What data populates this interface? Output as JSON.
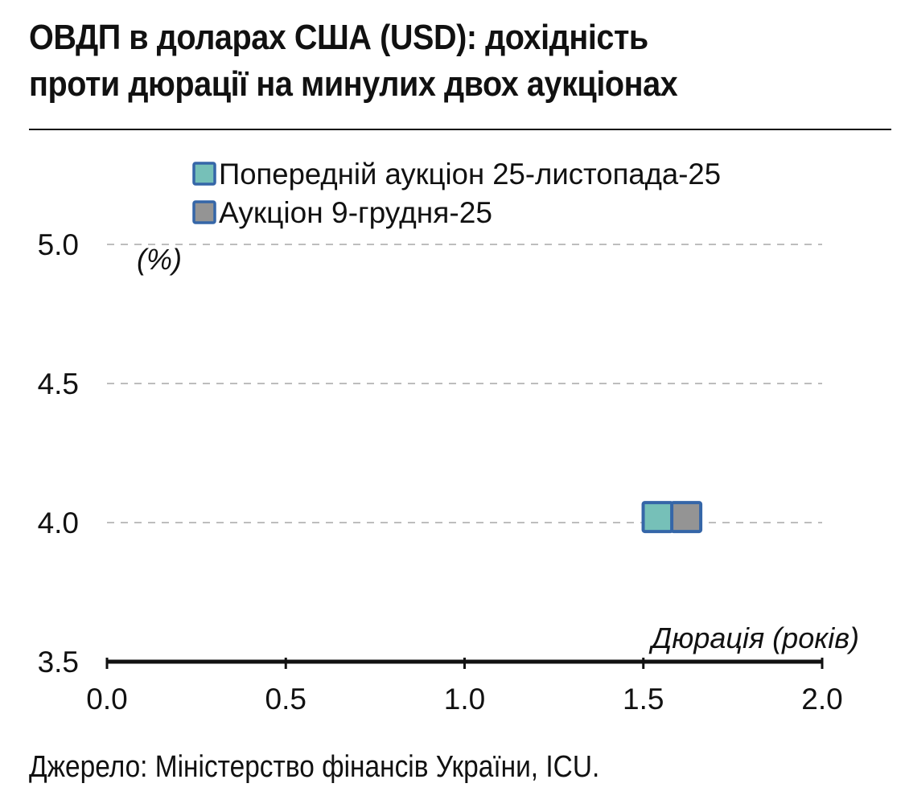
{
  "title_line1": "ОВДП в доларах США (USD): дохідність",
  "title_line2": "проти дюрації на минулих двох аукціонах",
  "source": "Джерело: Міністерство фінансів України, ICU.",
  "chart_data": {
    "type": "scatter",
    "title": "ОВДП в доларах США (USD): дохідність проти дюрації на минулих двох аукціонах",
    "xlabel": "Дюрація (років)",
    "ylabel": "(%)",
    "xlim": [
      0.0,
      2.0
    ],
    "ylim": [
      3.5,
      5.0
    ],
    "x_ticks": [
      0.0,
      0.5,
      1.0,
      1.5,
      2.0
    ],
    "x_tick_labels": [
      "0.0",
      "0.5",
      "1.0",
      "1.5",
      "2.0"
    ],
    "y_ticks": [
      3.5,
      4.0,
      4.5,
      5.0
    ],
    "y_tick_labels": [
      "3.5",
      "4.0",
      "4.5",
      "5.0"
    ],
    "grid": "horizontal dashed",
    "legend_position": "top",
    "marker_edge_color": "#3566a8",
    "series": [
      {
        "name": "Попередній аукціон 25-листопада-25",
        "color": "#76c0b8",
        "points": [
          {
            "x": 1.54,
            "y": 4.02
          }
        ]
      },
      {
        "name": "Аукціон 9-грудня-25",
        "color": "#949494",
        "points": [
          {
            "x": 1.62,
            "y": 4.02
          }
        ]
      }
    ]
  }
}
